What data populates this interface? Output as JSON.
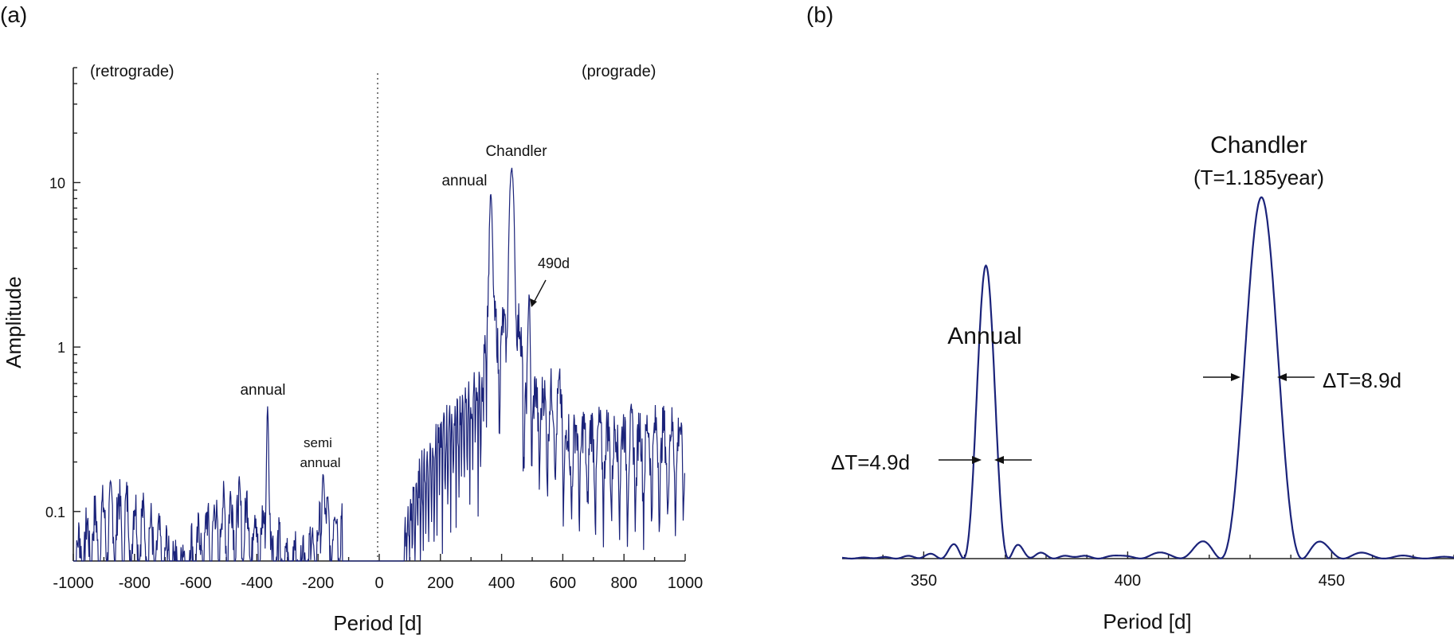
{
  "chart_data": [
    {
      "type": "line",
      "panel_label": "(a)",
      "xlabel": "Period [d]",
      "ylabel": "Amplitude",
      "yscale": "log",
      "xlim": [
        -1000,
        1000
      ],
      "ylim": [
        0.05,
        50
      ],
      "x_ticks": [
        "-1000",
        "-800",
        "-600",
        "-400",
        "-200",
        "0",
        "200",
        "400",
        "600",
        "800",
        "1000"
      ],
      "y_ticks": [
        "0.1",
        "1",
        "10"
      ],
      "region_labels": {
        "left": "(retrograde)",
        "right": "(prograde)"
      },
      "peaks": [
        {
          "name": "retro-annual",
          "x": -365,
          "y": 0.4
        },
        {
          "name": "retro-semi-annual",
          "x": -183,
          "y": 0.145
        },
        {
          "name": "pro-annual",
          "x": 365,
          "y": 8.0
        },
        {
          "name": "chandler",
          "x": 433,
          "y": 11.0
        },
        {
          "name": "490d",
          "x": 490,
          "y": 1.7
        }
      ],
      "annotations": {
        "retro_annual": "annual",
        "semi": "semi",
        "semi_annual": "annual",
        "pro_annual": "annual",
        "chandler": "Chandler",
        "d490": "490d"
      }
    },
    {
      "type": "line",
      "panel_label": "(b)",
      "xlabel": "Period [d]",
      "xlim": [
        330,
        480
      ],
      "x_ticks": [
        "350",
        "400",
        "450"
      ],
      "peaks": [
        {
          "name": "annual",
          "x": 365.25,
          "amplitude": 0.81,
          "width_dT": 4.9
        },
        {
          "name": "chandler",
          "x": 432.8,
          "amplitude": 1.0,
          "width_dT": 8.9
        }
      ],
      "annotations": {
        "annual": "Annual",
        "annual_dt": "ΔT=4.9d",
        "chandler": "Chandler",
        "chandler_t": "(T=1.185year)",
        "chandler_dt": "ΔT=8.9d"
      }
    }
  ]
}
